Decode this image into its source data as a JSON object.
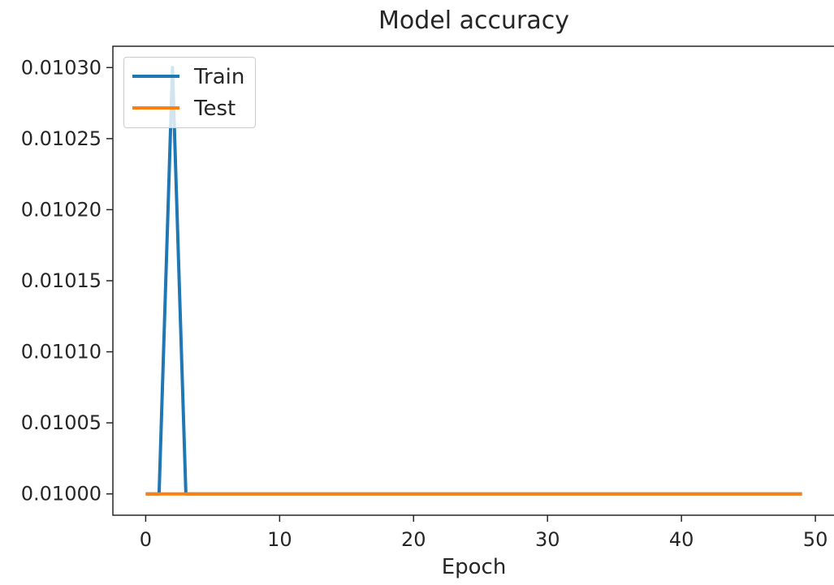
{
  "chart_data": {
    "type": "line",
    "title": "Model accuracy",
    "xlabel": "Epoch",
    "ylabel": "",
    "xlim": [
      -2.45,
      51.45
    ],
    "ylim": [
      0.009985,
      0.010315
    ],
    "x_ticks": [
      0,
      10,
      20,
      30,
      40,
      50
    ],
    "y_ticks": [
      0.01,
      0.01005,
      0.0101,
      0.01015,
      0.0102,
      0.01025,
      0.0103
    ],
    "x_tick_labels": [
      "0",
      "10",
      "20",
      "30",
      "40",
      "50"
    ],
    "y_tick_labels": [
      "0.01000",
      "0.01005",
      "0.01010",
      "0.01015",
      "0.01020",
      "0.01025",
      "0.01030"
    ],
    "grid": false,
    "legend_position": "upper-left",
    "series": [
      {
        "name": "Train",
        "color": "#1f77b4",
        "x": [
          0,
          1,
          2,
          3,
          4,
          49
        ],
        "y": [
          0.01,
          0.01,
          0.0103,
          0.01,
          0.01,
          0.01
        ]
      },
      {
        "name": "Test",
        "color": "#ff7f0e",
        "x": [
          0,
          49
        ],
        "y": [
          0.01,
          0.01
        ]
      }
    ]
  }
}
